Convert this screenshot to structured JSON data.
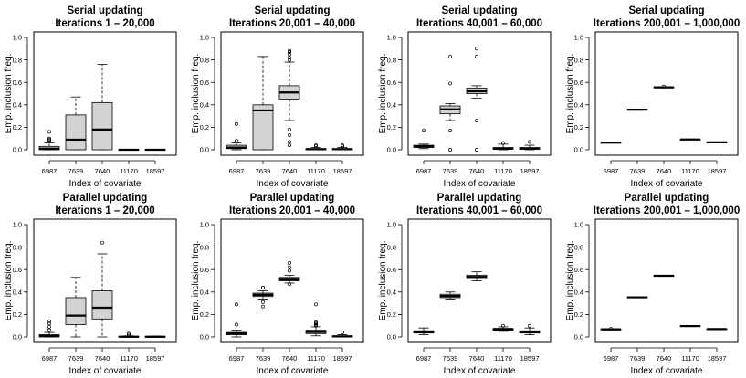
{
  "chart_data": [
    {
      "type": "box",
      "title": "Serial updating",
      "subtitle": "Iterations 1 – 20,000",
      "xlabel": "Index of covariate",
      "ylabel": "Emp. inclusion freq.",
      "ylim": [
        0,
        1
      ],
      "yticks": [
        "0.0",
        "0.2",
        "0.4",
        "0.6",
        "0.8",
        "1.0"
      ],
      "categories": [
        "6987",
        "7639",
        "7640",
        "11170",
        "18597"
      ],
      "boxes": [
        {
          "min": 0,
          "q1": 0,
          "median": 0.01,
          "q3": 0.03,
          "max": 0.06,
          "outliers": [
            0.08,
            0.09,
            0.1,
            0.16
          ]
        },
        {
          "min": 0,
          "q1": 0,
          "median": 0.09,
          "q3": 0.31,
          "max": 0.47,
          "outliers": []
        },
        {
          "min": 0,
          "q1": 0,
          "median": 0.18,
          "q3": 0.42,
          "max": 0.76,
          "outliers": []
        },
        {
          "min": 0,
          "q1": 0,
          "median": 0,
          "q3": 0.002,
          "max": 0.004,
          "outliers": []
        },
        {
          "min": 0,
          "q1": 0,
          "median": 0,
          "q3": 0.002,
          "max": 0.004,
          "outliers": []
        }
      ]
    },
    {
      "type": "box",
      "title": "Serial updating",
      "subtitle": "Iterations 20,001 – 40,000",
      "xlabel": "Index of covariate",
      "ylabel": "Emp. inclusion freq.",
      "ylim": [
        0,
        1
      ],
      "yticks": [
        "0.0",
        "0.2",
        "0.4",
        "0.6",
        "0.8",
        "1.0"
      ],
      "categories": [
        "6987",
        "7639",
        "7640",
        "11170",
        "18597"
      ],
      "boxes": [
        {
          "min": 0,
          "q1": 0.01,
          "median": 0.02,
          "q3": 0.04,
          "max": 0.06,
          "outliers": [
            0.08,
            0.23
          ]
        },
        {
          "min": 0,
          "q1": 0,
          "median": 0.35,
          "q3": 0.4,
          "max": 0.83,
          "outliers": []
        },
        {
          "min": 0.26,
          "q1": 0.45,
          "median": 0.51,
          "q3": 0.57,
          "max": 0.78,
          "outliers": [
            0.8,
            0.82,
            0.85,
            0.87,
            0.88,
            0.04,
            0.07,
            0.13,
            0.18
          ]
        },
        {
          "min": 0,
          "q1": 0,
          "median": 0.005,
          "q3": 0.01,
          "max": 0.02,
          "outliers": [
            0.03,
            0.04
          ]
        },
        {
          "min": 0,
          "q1": 0,
          "median": 0.005,
          "q3": 0.01,
          "max": 0.02,
          "outliers": [
            0.03,
            0.04
          ]
        }
      ]
    },
    {
      "type": "box",
      "title": "Serial updating",
      "subtitle": "Iterations 40,001 – 60,000",
      "xlabel": "Index of covariate",
      "ylabel": "Emp. inclusion freq.",
      "ylim": [
        0,
        1
      ],
      "yticks": [
        "0.0",
        "0.2",
        "0.4",
        "0.6",
        "0.8",
        "1.0"
      ],
      "categories": [
        "6987",
        "7639",
        "7640",
        "11170",
        "18597"
      ],
      "boxes": [
        {
          "min": 0.01,
          "q1": 0.02,
          "median": 0.03,
          "q3": 0.04,
          "max": 0.05,
          "outliers": [
            0.17
          ]
        },
        {
          "min": 0.26,
          "q1": 0.32,
          "median": 0.36,
          "q3": 0.39,
          "max": 0.41,
          "outliers": [
            0.83,
            0.59,
            0.17,
            0
          ]
        },
        {
          "min": 0.46,
          "q1": 0.5,
          "median": 0.52,
          "q3": 0.55,
          "max": 0.57,
          "outliers": [
            0.9,
            0.83,
            0.26,
            0
          ]
        },
        {
          "min": 0,
          "q1": 0.005,
          "median": 0.01,
          "q3": 0.02,
          "max": 0.05,
          "outliers": [
            0.06
          ]
        },
        {
          "min": 0,
          "q1": 0.005,
          "median": 0.01,
          "q3": 0.02,
          "max": 0.04,
          "outliers": [
            0.07
          ]
        }
      ]
    },
    {
      "type": "box",
      "title": "Serial updating",
      "subtitle": "Iterations 200,001 – 1,000,000",
      "xlabel": "Index of covariate",
      "ylabel": "Emp. inclusion freq.",
      "ylim": [
        0,
        1
      ],
      "yticks": [
        "0.0",
        "0.2",
        "0.4",
        "0.6",
        "0.8",
        "1.0"
      ],
      "categories": [
        "6987",
        "7639",
        "7640",
        "11170",
        "18597"
      ],
      "boxes": [
        {
          "min": 0.062,
          "q1": 0.063,
          "median": 0.064,
          "q3": 0.065,
          "max": 0.066,
          "outliers": []
        },
        {
          "min": 0.352,
          "q1": 0.355,
          "median": 0.357,
          "q3": 0.359,
          "max": 0.362,
          "outliers": []
        },
        {
          "min": 0.552,
          "q1": 0.554,
          "median": 0.556,
          "q3": 0.558,
          "max": 0.56,
          "outliers": [
            0.563
          ]
        },
        {
          "min": 0.09,
          "q1": 0.091,
          "median": 0.092,
          "q3": 0.093,
          "max": 0.094,
          "outliers": []
        },
        {
          "min": 0.064,
          "q1": 0.065,
          "median": 0.066,
          "q3": 0.067,
          "max": 0.068,
          "outliers": []
        }
      ]
    },
    {
      "type": "box",
      "title": "Parallel updating",
      "subtitle": "Iterations 1 – 20,000",
      "xlabel": "Index of covariate",
      "ylabel": "Emp. inclusion freq.",
      "ylim": [
        0,
        1
      ],
      "yticks": [
        "0.0",
        "0.2",
        "0.4",
        "0.6",
        "0.8",
        "1.0"
      ],
      "categories": [
        "6987",
        "7639",
        "7640",
        "11170",
        "18597"
      ],
      "boxes": [
        {
          "min": 0,
          "q1": 0,
          "median": 0.01,
          "q3": 0.02,
          "max": 0.04,
          "outliers": [
            0.06,
            0.09,
            0.12,
            0.14
          ]
        },
        {
          "min": 0,
          "q1": 0.11,
          "median": 0.19,
          "q3": 0.35,
          "max": 0.53,
          "outliers": []
        },
        {
          "min": 0,
          "q1": 0.16,
          "median": 0.26,
          "q3": 0.41,
          "max": 0.74,
          "outliers": [
            0.84
          ]
        },
        {
          "min": 0,
          "q1": 0,
          "median": 0.002,
          "q3": 0.005,
          "max": 0.01,
          "outliers": [
            0.02,
            0.03
          ]
        },
        {
          "min": 0,
          "q1": 0,
          "median": 0.002,
          "q3": 0.004,
          "max": 0.008,
          "outliers": []
        }
      ]
    },
    {
      "type": "box",
      "title": "Parallel updating",
      "subtitle": "Iterations 20,001 – 40,000",
      "xlabel": "Index of covariate",
      "ylabel": "Emp. inclusion freq.",
      "ylim": [
        0,
        1
      ],
      "yticks": [
        "0.0",
        "0.2",
        "0.4",
        "0.6",
        "0.8",
        "1.0"
      ],
      "categories": [
        "6987",
        "7639",
        "7640",
        "11170",
        "18597"
      ],
      "boxes": [
        {
          "min": 0,
          "q1": 0.02,
          "median": 0.03,
          "q3": 0.04,
          "max": 0.06,
          "outliers": [
            0.11,
            0.29
          ]
        },
        {
          "min": 0.33,
          "q1": 0.36,
          "median": 0.375,
          "q3": 0.39,
          "max": 0.41,
          "outliers": [
            0.27,
            0.31,
            0.44
          ]
        },
        {
          "min": 0.48,
          "q1": 0.5,
          "median": 0.51,
          "q3": 0.53,
          "max": 0.55,
          "outliers": [
            0.47,
            0.59,
            0.62,
            0.66
          ]
        },
        {
          "min": 0.01,
          "q1": 0.03,
          "median": 0.045,
          "q3": 0.06,
          "max": 0.09,
          "outliers": [
            0.1,
            0.11,
            0.12,
            0.13,
            0.29
          ]
        },
        {
          "min": 0,
          "q1": 0,
          "median": 0.005,
          "q3": 0.01,
          "max": 0.02,
          "outliers": [
            0.04
          ]
        }
      ]
    },
    {
      "type": "box",
      "title": "Parallel updating",
      "subtitle": "Iterations 40,001 – 60,000",
      "xlabel": "Index of covariate",
      "ylabel": "Emp. inclusion freq.",
      "ylim": [
        0,
        1
      ],
      "yticks": [
        "0.0",
        "0.2",
        "0.4",
        "0.6",
        "0.8",
        "1.0"
      ],
      "categories": [
        "6987",
        "7639",
        "7640",
        "11170",
        "18597"
      ],
      "boxes": [
        {
          "min": 0.02,
          "q1": 0.035,
          "median": 0.045,
          "q3": 0.055,
          "max": 0.08,
          "outliers": []
        },
        {
          "min": 0.33,
          "q1": 0.35,
          "median": 0.365,
          "q3": 0.38,
          "max": 0.4,
          "outliers": []
        },
        {
          "min": 0.5,
          "q1": 0.52,
          "median": 0.535,
          "q3": 0.55,
          "max": 0.58,
          "outliers": []
        },
        {
          "min": 0.05,
          "q1": 0.06,
          "median": 0.07,
          "q3": 0.075,
          "max": 0.09,
          "outliers": [
            0.1
          ]
        },
        {
          "min": 0.02,
          "q1": 0.035,
          "median": 0.045,
          "q3": 0.055,
          "max": 0.08,
          "outliers": [
            0.1
          ]
        }
      ]
    },
    {
      "type": "box",
      "title": "Parallel updating",
      "subtitle": "Iterations 200,001 – 1,000,000",
      "xlabel": "Index of covariate",
      "ylabel": "Emp. inclusion freq.",
      "ylim": [
        0,
        1
      ],
      "yticks": [
        "0.0",
        "0.2",
        "0.4",
        "0.6",
        "0.8",
        "1.0"
      ],
      "categories": [
        "6987",
        "7639",
        "7640",
        "11170",
        "18597"
      ],
      "boxes": [
        {
          "min": 0.066,
          "q1": 0.067,
          "median": 0.068,
          "q3": 0.069,
          "max": 0.07,
          "outliers": [
            0.073
          ]
        },
        {
          "min": 0.349,
          "q1": 0.351,
          "median": 0.353,
          "q3": 0.355,
          "max": 0.357,
          "outliers": []
        },
        {
          "min": 0.541,
          "q1": 0.543,
          "median": 0.545,
          "q3": 0.547,
          "max": 0.549,
          "outliers": []
        },
        {
          "min": 0.095,
          "q1": 0.096,
          "median": 0.097,
          "q3": 0.098,
          "max": 0.1,
          "outliers": []
        },
        {
          "min": 0.068,
          "q1": 0.069,
          "median": 0.07,
          "q3": 0.071,
          "max": 0.072,
          "outliers": []
        }
      ]
    }
  ],
  "colors": {
    "box_fill": "#d3d3d3",
    "stroke": "#000000",
    "background": "#ffffff"
  }
}
